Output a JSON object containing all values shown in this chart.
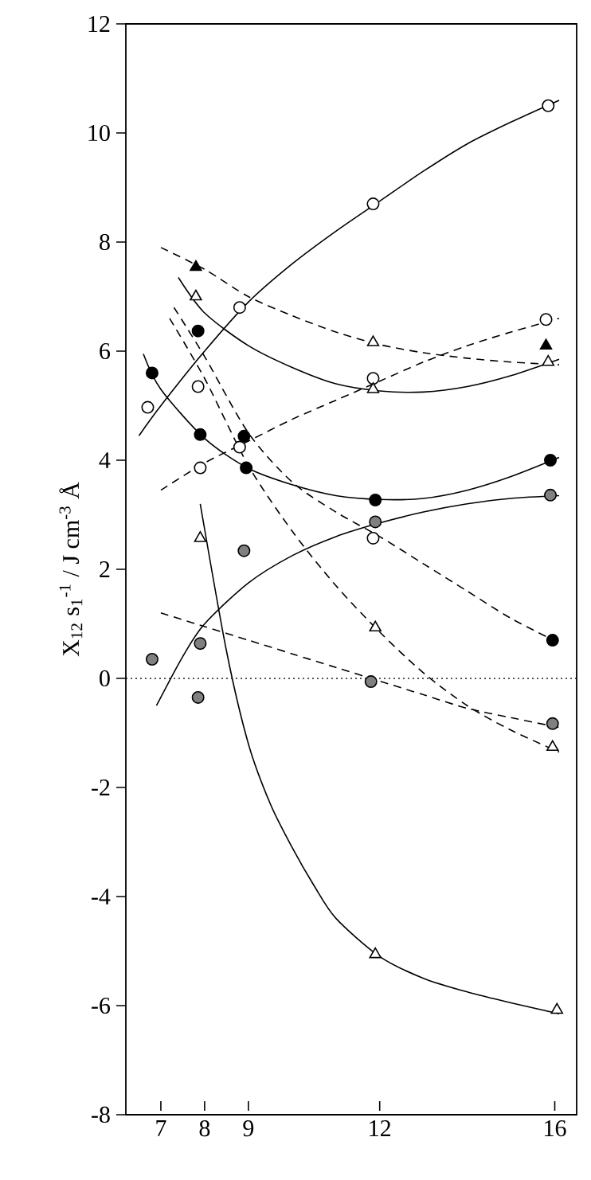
{
  "chart_data": {
    "type": "line",
    "ylabel": "X$_{12}$ s$_{1}$$^{-1}$ / J cm$^{-3}$ Å",
    "xlim": [
      6.2,
      16.5
    ],
    "ylim": [
      -8,
      12
    ],
    "xticks": [
      7,
      8,
      9,
      12,
      16
    ],
    "yticks": [
      -8,
      -6,
      -4,
      -2,
      0,
      2,
      4,
      6,
      8,
      10,
      12
    ],
    "ref_lines": [
      {
        "axis": "y",
        "value": 0,
        "line_style": "dotted"
      }
    ],
    "series": [
      {
        "line_style": "solid",
        "color": "#000000",
        "x": [
          6.5,
          7,
          8,
          9,
          10,
          11,
          12,
          13,
          14,
          15,
          16.1
        ],
        "values": [
          4.45,
          5.0,
          6.0,
          6.9,
          7.6,
          8.2,
          8.75,
          9.3,
          9.8,
          10.2,
          10.6
        ]
      },
      {
        "line_style": "dashed",
        "color": "#000000",
        "x": [
          7,
          8,
          9,
          10,
          11,
          12,
          13,
          14,
          15,
          16.1
        ],
        "values": [
          7.9,
          7.5,
          7.0,
          6.65,
          6.35,
          6.12,
          5.97,
          5.87,
          5.8,
          5.75
        ]
      },
      {
        "line_style": "dashed",
        "color": "#000000",
        "x": [
          7,
          8,
          9,
          10,
          11,
          12,
          13,
          14,
          15,
          16.1
        ],
        "values": [
          3.45,
          3.95,
          4.35,
          4.75,
          5.1,
          5.45,
          5.8,
          6.1,
          6.35,
          6.6
        ]
      },
      {
        "line_style": "solid",
        "color": "#000000",
        "x": [
          7.4,
          8,
          9,
          10,
          11,
          12,
          13,
          14,
          15,
          16.1
        ],
        "values": [
          7.35,
          6.7,
          6.1,
          5.7,
          5.4,
          5.27,
          5.25,
          5.35,
          5.55,
          5.85
        ]
      },
      {
        "line_style": "solid",
        "color": "#000000",
        "x": [
          6.6,
          7,
          8,
          9,
          10,
          11,
          12,
          13,
          14,
          15,
          16.1
        ],
        "values": [
          5.95,
          5.3,
          4.4,
          3.85,
          3.55,
          3.35,
          3.28,
          3.3,
          3.45,
          3.7,
          4.05
        ]
      },
      {
        "line_style": "solid",
        "color": "#000000",
        "x": [
          6.9,
          7.5,
          8,
          9,
          10,
          11,
          12,
          13,
          14,
          15,
          16.1
        ],
        "values": [
          -0.5,
          0.4,
          1.0,
          1.75,
          2.25,
          2.6,
          2.85,
          3.05,
          3.2,
          3.3,
          3.35
        ]
      },
      {
        "line_style": "dashed",
        "color": "#000000",
        "x": [
          7.3,
          8,
          9,
          10,
          11,
          12,
          13,
          14,
          15,
          16.1
        ],
        "values": [
          6.8,
          5.9,
          4.5,
          3.6,
          3.05,
          2.6,
          2.1,
          1.6,
          1.1,
          0.65
        ]
      },
      {
        "line_style": "dashed",
        "color": "#000000",
        "x": [
          7.2,
          8,
          9,
          10,
          11,
          12,
          13,
          14,
          15,
          16.1
        ],
        "values": [
          6.6,
          5.5,
          3.9,
          2.7,
          1.7,
          0.85,
          0.1,
          -0.5,
          -0.95,
          -1.35
        ]
      },
      {
        "line_style": "dashed",
        "color": "#000000",
        "x": [
          7,
          8,
          9,
          10,
          11,
          12,
          13,
          14,
          15,
          16.1
        ],
        "values": [
          1.2,
          0.95,
          0.7,
          0.45,
          0.2,
          -0.05,
          -0.3,
          -0.55,
          -0.72,
          -0.9
        ]
      },
      {
        "line_style": "solid",
        "color": "#000000",
        "x": [
          7.9,
          8.5,
          9,
          9.5,
          10,
          10.5,
          11,
          12,
          13,
          14,
          15,
          16.1
        ],
        "values": [
          3.2,
          0.5,
          -1.2,
          -2.3,
          -3.1,
          -3.8,
          -4.4,
          -5.1,
          -5.5,
          -5.75,
          -5.95,
          -6.15
        ]
      },
      {
        "type": "scatter",
        "marker": "circle",
        "color": "#ffffff",
        "x": [
          6.7,
          7.85,
          7.9,
          8.8,
          8.8,
          11.85,
          11.85,
          11.85,
          15.85,
          15.8
        ],
        "values": [
          4.97,
          5.35,
          3.86,
          4.24,
          6.8,
          8.7,
          5.5,
          2.57,
          10.5,
          6.58
        ]
      },
      {
        "type": "scatter",
        "marker": "circle",
        "color": "#000000",
        "x": [
          6.8,
          7.85,
          7.9,
          8.9,
          8.95,
          11.9,
          15.9,
          15.95
        ],
        "values": [
          5.6,
          6.37,
          4.47,
          4.44,
          3.86,
          3.27,
          4.0,
          0.7
        ]
      },
      {
        "type": "scatter",
        "marker": "circle",
        "color": "#808080",
        "x": [
          6.8,
          7.85,
          7.9,
          8.9,
          11.9,
          11.8,
          15.9,
          15.95
        ],
        "values": [
          0.35,
          -0.35,
          0.64,
          2.34,
          2.87,
          -0.06,
          3.36,
          -0.83
        ]
      },
      {
        "type": "scatter",
        "marker": "triangle",
        "color": "#000000",
        "x": [
          7.8,
          15.8
        ],
        "values": [
          7.54,
          6.1
        ]
      },
      {
        "type": "scatter",
        "marker": "triangle",
        "color": "#ffffff",
        "x": [
          7.8,
          7.9,
          11.85,
          11.85,
          11.9,
          11.9,
          15.85,
          15.95,
          16.05
        ],
        "values": [
          7.0,
          2.57,
          6.16,
          5.3,
          0.93,
          -5.06,
          5.8,
          -1.26,
          -6.08
        ]
      }
    ]
  }
}
